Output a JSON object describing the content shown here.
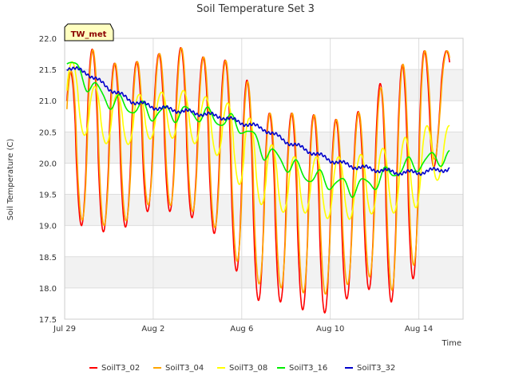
{
  "chart_data": {
    "type": "line",
    "title": "Soil Temperature Set 3",
    "xlabel": "Time",
    "ylabel": "Soil Temperature (C)",
    "badge": "TW_met",
    "xlim": [
      "2023-07-29",
      "2023-08-16"
    ],
    "ylim": [
      17.5,
      22.0
    ],
    "x_ticks": [
      {
        "date": "2023-07-29",
        "label": "Jul 29"
      },
      {
        "date": "2023-08-02",
        "label": "Aug 2"
      },
      {
        "date": "2023-08-06",
        "label": "Aug 6"
      },
      {
        "date": "2023-08-10",
        "label": "Aug 10"
      },
      {
        "date": "2023-08-14",
        "label": "Aug 14"
      }
    ],
    "y_ticks": [
      "17.5",
      "18.0",
      "18.5",
      "19.0",
      "19.5",
      "20.0",
      "20.5",
      "21.0",
      "21.5",
      "22.0"
    ],
    "grid": true,
    "banded_background": true,
    "legend_position": "bottom",
    "days": [
      "Jul 29",
      "Jul 30",
      "Jul 31",
      "Aug 1",
      "Aug 2",
      "Aug 3",
      "Aug 4",
      "Aug 5",
      "Aug 6",
      "Aug 7",
      "Aug 8",
      "Aug 9",
      "Aug 10",
      "Aug 11",
      "Aug 12",
      "Aug 13",
      "Aug 14",
      "Aug 15"
    ],
    "series": [
      {
        "name": "SoilT3_02",
        "color": "#ff0000",
        "daily_max": [
          21.3,
          21.9,
          21.6,
          21.6,
          21.7,
          21.9,
          21.7,
          21.7,
          21.5,
          20.8,
          20.8,
          20.8,
          20.7,
          20.7,
          21.2,
          21.5,
          21.8,
          21.8
        ],
        "daily_min": [
          19.3,
          18.9,
          18.9,
          19.0,
          19.3,
          19.2,
          19.1,
          18.8,
          18.1,
          17.7,
          17.8,
          17.6,
          17.6,
          17.9,
          18.0,
          17.7,
          18.3,
          20.6
        ]
      },
      {
        "name": "SoilT3_04",
        "color": "#ffa500",
        "daily_max": [
          21.3,
          21.9,
          21.6,
          21.6,
          21.7,
          21.9,
          21.7,
          21.7,
          21.5,
          20.8,
          20.8,
          20.8,
          20.7,
          20.7,
          21.1,
          21.5,
          21.8,
          21.8
        ],
        "daily_min": [
          19.4,
          19.0,
          19.0,
          19.1,
          19.4,
          19.3,
          19.2,
          18.9,
          18.3,
          18.0,
          18.0,
          17.9,
          17.9,
          18.1,
          18.2,
          17.9,
          18.5,
          20.6
        ]
      },
      {
        "name": "SoilT3_08",
        "color": "#ffff00",
        "daily_max": [
          21.8,
          21.3,
          21.1,
          21.1,
          21.1,
          21.2,
          21.1,
          21.0,
          20.9,
          20.4,
          20.1,
          20.1,
          20.1,
          20.1,
          20.2,
          20.3,
          20.6,
          20.6
        ],
        "daily_min": [
          20.8,
          20.4,
          20.3,
          20.3,
          20.4,
          20.4,
          20.3,
          20.1,
          19.6,
          19.3,
          19.2,
          19.2,
          19.1,
          19.1,
          19.2,
          19.2,
          19.3,
          19.8
        ]
      },
      {
        "name": "SoilT3_16",
        "color": "#00ee00",
        "daily_mean": [
          21.7,
          21.3,
          21.0,
          20.9,
          20.8,
          20.8,
          20.8,
          20.7,
          20.6,
          20.2,
          20.0,
          19.8,
          19.7,
          19.6,
          19.7,
          19.9,
          20.0,
          20.1
        ]
      },
      {
        "name": "SoilT3_32",
        "color": "#0000cc",
        "daily_mean": [
          21.55,
          21.45,
          21.2,
          21.0,
          20.9,
          20.85,
          20.8,
          20.75,
          20.65,
          20.55,
          20.35,
          20.2,
          20.05,
          19.95,
          19.9,
          19.85,
          19.85,
          19.9
        ]
      }
    ]
  }
}
